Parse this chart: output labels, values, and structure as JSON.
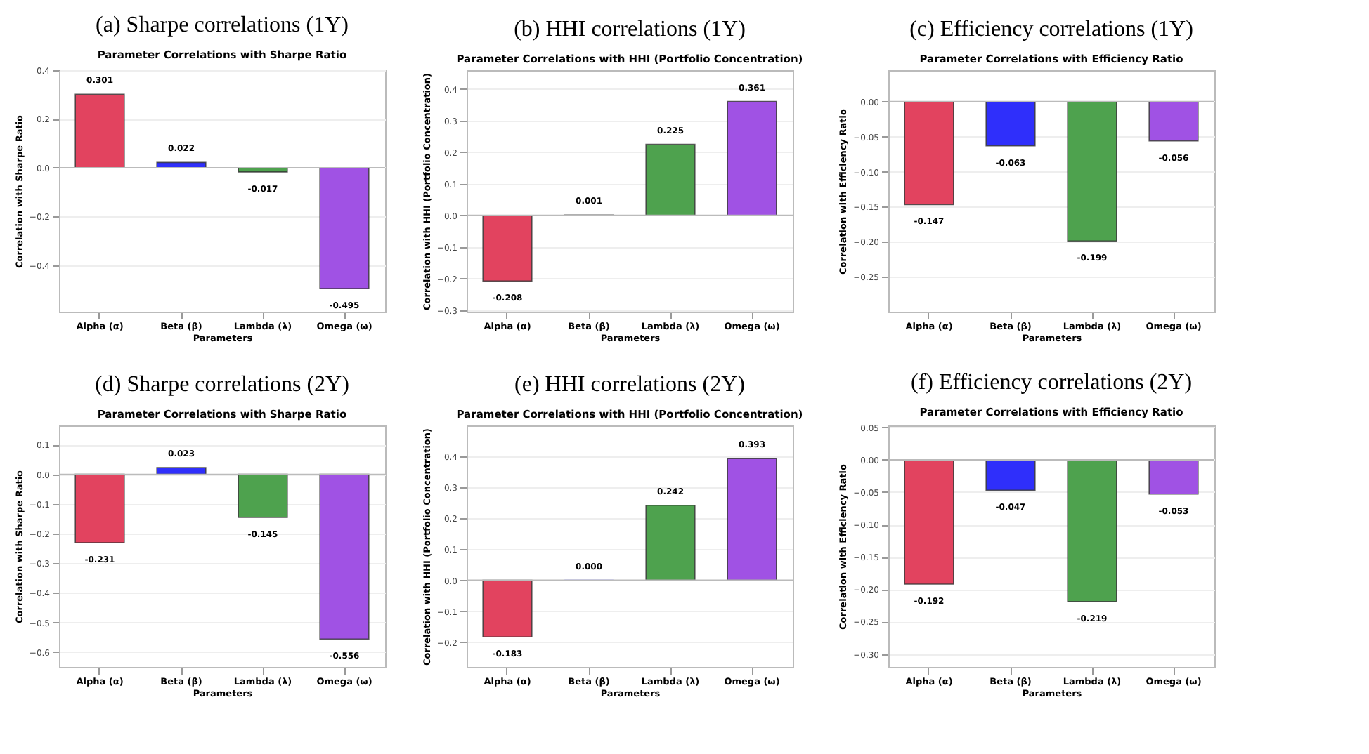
{
  "chart_data": [
    {
      "type": "bar",
      "title": "(a) Sharpe correlations (1Y)",
      "subtitle": "Parameter Correlations with Sharpe Ratio",
      "xlabel": "Parameters",
      "ylabel": "Correlation with Sharpe Ratio",
      "categories": [
        "Alpha (α)",
        "Beta (β)",
        "Lambda (λ)",
        "Omega (ω)"
      ],
      "values": [
        0.301,
        0.022,
        -0.017,
        -0.495
      ],
      "colors": [
        "#e2435f",
        "#2f2ffb",
        "#4ea24e",
        "#a052e4"
      ],
      "value_labels": [
        "0.301",
        "0.022",
        "-0.017",
        "-0.495"
      ],
      "ylim": [
        -0.59,
        0.4
      ],
      "yticks": [
        {
          "value": -0.4,
          "label": "−0.4"
        },
        {
          "value": -0.2,
          "label": "−0.2"
        },
        {
          "value": 0,
          "label": "0.0"
        },
        {
          "value": 0.2,
          "label": "0.2"
        },
        {
          "value": 0.4,
          "label": "0.4"
        }
      ],
      "grid": "y",
      "ref_lines": [
        {
          "axis": "y",
          "value": 0,
          "color": "#bbbbbb"
        }
      ]
    },
    {
      "type": "bar",
      "title": "(b) HHI correlations (1Y)",
      "subtitle": "Parameter Correlations with HHI (Portfolio Concentration)",
      "xlabel": "Parameters",
      "ylabel": "Correlation with HHI (Portfolio Concentration)",
      "categories": [
        "Alpha (α)",
        "Beta (β)",
        "Lambda (λ)",
        "Omega (ω)"
      ],
      "values": [
        -0.208,
        0.001,
        0.225,
        0.361
      ],
      "colors": [
        "#e2435f",
        "#2f2ffb",
        "#4ea24e",
        "#a052e4"
      ],
      "value_labels": [
        "-0.208",
        "0.001",
        "0.225",
        "0.361"
      ],
      "ylim": [
        -0.305,
        0.46
      ],
      "yticks": [
        {
          "value": -0.3,
          "label": "−0.3"
        },
        {
          "value": -0.2,
          "label": "−0.2"
        },
        {
          "value": -0.1,
          "label": "−0.1"
        },
        {
          "value": 0,
          "label": "0.0"
        },
        {
          "value": 0.1,
          "label": "0.1"
        },
        {
          "value": 0.2,
          "label": "0.2"
        },
        {
          "value": 0.3,
          "label": "0.3"
        },
        {
          "value": 0.4,
          "label": "0.4"
        }
      ],
      "grid": "y",
      "ref_lines": [
        {
          "axis": "y",
          "value": 0,
          "color": "#bbbbbb"
        }
      ]
    },
    {
      "type": "bar",
      "title": "(c) Efficiency correlations (1Y)",
      "subtitle": "Parameter Correlations with Efficiency Ratio",
      "xlabel": "Parameters",
      "ylabel": "Correlation with Efficiency Ratio",
      "categories": [
        "Alpha (α)",
        "Beta (β)",
        "Lambda (λ)",
        "Omega (ω)"
      ],
      "values": [
        -0.147,
        -0.063,
        -0.199,
        -0.056
      ],
      "colors": [
        "#e2435f",
        "#2f2ffb",
        "#4ea24e",
        "#a052e4"
      ],
      "value_labels": [
        "-0.147",
        "-0.063",
        "-0.199",
        "-0.056"
      ],
      "ylim": [
        -0.3,
        0.045
      ],
      "yticks": [
        {
          "value": -0.25,
          "label": "−0.25"
        },
        {
          "value": -0.2,
          "label": "−0.20"
        },
        {
          "value": -0.15,
          "label": "−0.15"
        },
        {
          "value": -0.1,
          "label": "−0.10"
        },
        {
          "value": -0.05,
          "label": "−0.05"
        },
        {
          "value": 0,
          "label": "0.00"
        }
      ],
      "grid": "y",
      "ref_lines": [
        {
          "axis": "y",
          "value": 0,
          "color": "#bbbbbb"
        }
      ]
    },
    {
      "type": "bar",
      "title": "(d) Sharpe correlations (2Y)",
      "subtitle": "Parameter Correlations with Sharpe Ratio",
      "xlabel": "Parameters",
      "ylabel": "Correlation with Sharpe Ratio",
      "categories": [
        "Alpha (α)",
        "Beta (β)",
        "Lambda (λ)",
        "Omega (ω)"
      ],
      "values": [
        -0.231,
        0.023,
        -0.145,
        -0.556
      ],
      "colors": [
        "#e2435f",
        "#2f2ffb",
        "#4ea24e",
        "#a052e4"
      ],
      "value_labels": [
        "-0.231",
        "0.023",
        "-0.145",
        "-0.556"
      ],
      "ylim": [
        -0.65,
        0.165
      ],
      "yticks": [
        {
          "value": -0.6,
          "label": "−0.6"
        },
        {
          "value": -0.5,
          "label": "−0.5"
        },
        {
          "value": -0.4,
          "label": "−0.4"
        },
        {
          "value": -0.3,
          "label": "−0.3"
        },
        {
          "value": -0.2,
          "label": "−0.2"
        },
        {
          "value": -0.1,
          "label": "−0.1"
        },
        {
          "value": 0,
          "label": "0.0"
        },
        {
          "value": 0.1,
          "label": "0.1"
        }
      ],
      "grid": "y",
      "ref_lines": [
        {
          "axis": "y",
          "value": 0,
          "color": "#bbbbbb"
        }
      ]
    },
    {
      "type": "bar",
      "title": "(e) HHI correlations (2Y)",
      "subtitle": "Parameter Correlations with HHI (Portfolio Concentration)",
      "xlabel": "Parameters",
      "ylabel": "Correlation with HHI (Portfolio Concentration)",
      "categories": [
        "Alpha (α)",
        "Beta (β)",
        "Lambda (λ)",
        "Omega (ω)"
      ],
      "values": [
        -0.183,
        0.0,
        0.242,
        0.393
      ],
      "colors": [
        "#e2435f",
        "#2f2ffb",
        "#4ea24e",
        "#a052e4"
      ],
      "value_labels": [
        "-0.183",
        "0.000",
        "0.242",
        "0.393"
      ],
      "ylim": [
        -0.28,
        0.5
      ],
      "yticks": [
        {
          "value": -0.2,
          "label": "−0.2"
        },
        {
          "value": -0.1,
          "label": "−0.1"
        },
        {
          "value": 0,
          "label": "0.0"
        },
        {
          "value": 0.1,
          "label": "0.1"
        },
        {
          "value": 0.2,
          "label": "0.2"
        },
        {
          "value": 0.3,
          "label": "0.3"
        },
        {
          "value": 0.4,
          "label": "0.4"
        }
      ],
      "grid": "y",
      "ref_lines": [
        {
          "axis": "y",
          "value": 0,
          "color": "#bbbbbb"
        }
      ]
    },
    {
      "type": "bar",
      "title": "(f) Efficiency correlations (2Y)",
      "subtitle": "Parameter Correlations with Efficiency Ratio",
      "xlabel": "Parameters",
      "ylabel": "Correlation with Efficiency Ratio",
      "categories": [
        "Alpha (α)",
        "Beta (β)",
        "Lambda (λ)",
        "Omega (ω)"
      ],
      "values": [
        -0.192,
        -0.047,
        -0.219,
        -0.053
      ],
      "colors": [
        "#e2435f",
        "#2f2ffb",
        "#4ea24e",
        "#a052e4"
      ],
      "value_labels": [
        "-0.192",
        "-0.047",
        "-0.219",
        "-0.053"
      ],
      "ylim": [
        -0.32,
        0.053
      ],
      "yticks": [
        {
          "value": -0.3,
          "label": "−0.30"
        },
        {
          "value": -0.25,
          "label": "−0.25"
        },
        {
          "value": -0.2,
          "label": "−0.20"
        },
        {
          "value": -0.15,
          "label": "−0.15"
        },
        {
          "value": -0.1,
          "label": "−0.10"
        },
        {
          "value": -0.05,
          "label": "−0.05"
        },
        {
          "value": 0,
          "label": "0.00"
        },
        {
          "value": 0.05,
          "label": "0.05"
        }
      ],
      "grid": "y",
      "ref_lines": [
        {
          "axis": "y",
          "value": 0,
          "color": "#bbbbbb"
        }
      ]
    }
  ]
}
